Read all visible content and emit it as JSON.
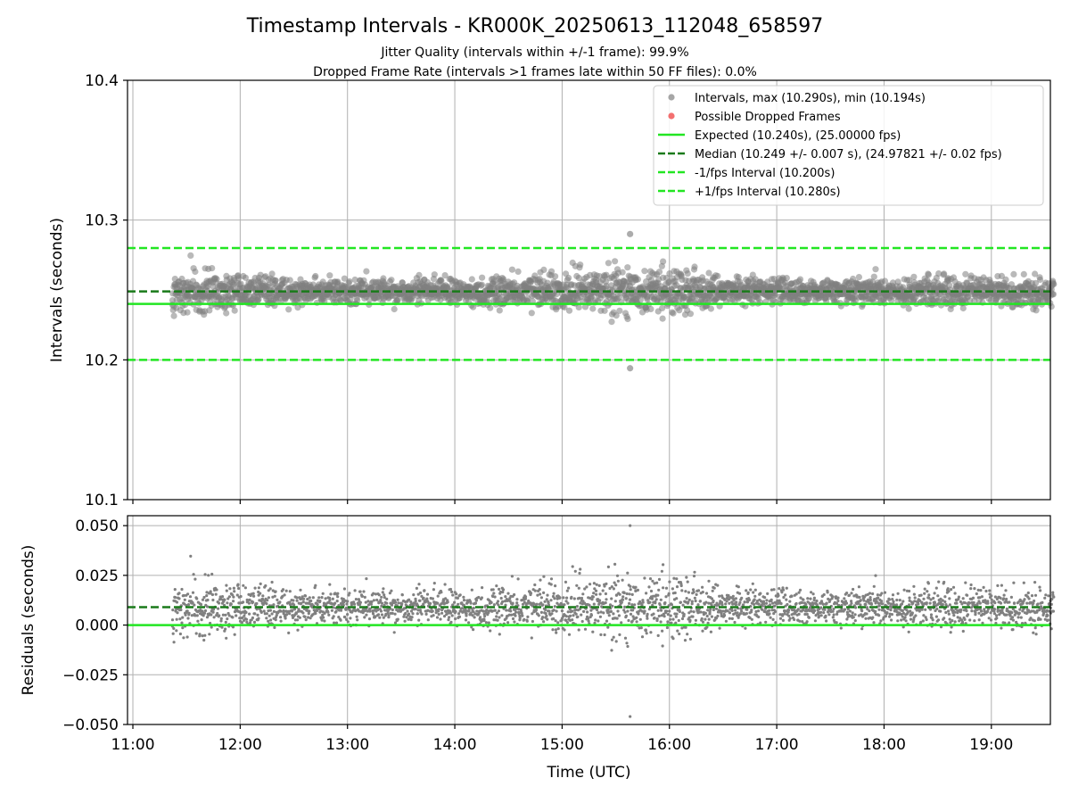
{
  "figure": {
    "title": "Timestamp Intervals - KR000K_20250613_112048_658597",
    "subtitle_lines": [
      "Jitter Quality (intervals within +/-1 frame): 99.9%",
      "Dropped Frame Rate (intervals >1 frames late within 50 FF files): 0.0%"
    ]
  },
  "colors": {
    "points": "#808080",
    "dropped": "#ee3333",
    "expected": "#22e622",
    "median": "#1a7a1a",
    "bounds": "#22e622"
  },
  "chart_data": [
    {
      "type": "scatter",
      "name": "intervals",
      "ylabel": "Intervals (seconds)",
      "xlabel": "",
      "ylim": [
        10.1,
        10.4
      ],
      "yticks": [
        10.1,
        10.2,
        10.3,
        10.4
      ],
      "ytick_labels": [
        "10.1",
        "10.2",
        "10.3",
        "10.4"
      ],
      "xlim_hours": [
        10.95,
        19.55
      ],
      "grid": true,
      "legend_position": "top-right",
      "legend": [
        {
          "kind": "marker",
          "style": "points",
          "label": "Intervals, max (10.290s), min (10.194s)"
        },
        {
          "kind": "marker",
          "style": "dropped",
          "label": "Possible Dropped Frames"
        },
        {
          "kind": "line",
          "style": "expected",
          "label": "Expected (10.240s), (25.00000 fps)"
        },
        {
          "kind": "dashed",
          "style": "median",
          "label": "Median (10.249 +/- 0.007 s), (24.97821 +/- 0.02 fps)"
        },
        {
          "kind": "dashed",
          "style": "bounds",
          "label": "-1/fps Interval (10.200s)"
        },
        {
          "kind": "dashed",
          "style": "bounds",
          "label": "+1/fps Interval (10.280s)"
        }
      ],
      "reference_lines": {
        "expected": 10.24,
        "median": 10.249,
        "minus_one_frame": 10.2,
        "plus_one_frame": 10.28
      },
      "series_summary": {
        "start_time": "11:22",
        "end_time": "19:35",
        "max": 10.29,
        "max_time": "15:38",
        "min": 10.194,
        "min_time": "15:38",
        "median": 10.249,
        "std": 0.007
      }
    },
    {
      "type": "scatter",
      "name": "residuals",
      "ylabel": "Residuals (seconds)",
      "xlabel": "Time (UTC)",
      "ylim": [
        -0.05,
        0.055
      ],
      "yticks": [
        -0.05,
        -0.025,
        0.0,
        0.025,
        0.05
      ],
      "ytick_labels": [
        "−0.050",
        "−0.025",
        "0.000",
        "0.025",
        "0.050"
      ],
      "xticks_hours": [
        11,
        12,
        13,
        14,
        15,
        16,
        17,
        18,
        19
      ],
      "xtick_labels": [
        "11:00",
        "12:00",
        "13:00",
        "14:00",
        "15:00",
        "16:00",
        "17:00",
        "18:00",
        "19:00"
      ],
      "grid": true,
      "reference_lines": {
        "zero": 0.0,
        "median": 0.009
      },
      "series_summary": {
        "max": 0.05,
        "min": -0.046
      }
    }
  ]
}
